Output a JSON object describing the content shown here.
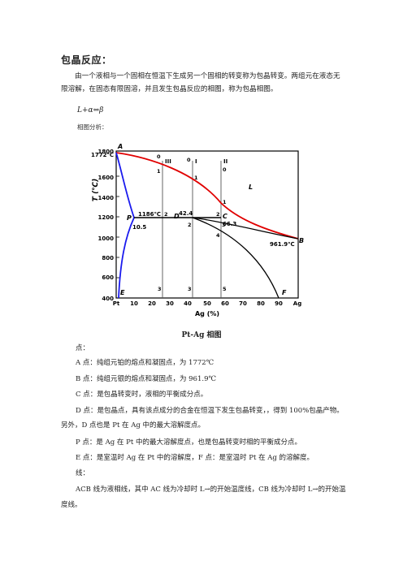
{
  "heading": "包晶反应：",
  "intro": "由一个液相与一个固相在恒温下生成另一个固相的转变称为包晶转变。两组元在液态无限溶解，在固态有限固溶，并且发生包晶反应的相图，称为包晶相图。",
  "formula": "L+α⇔β",
  "analysis_label": "相图分析：",
  "diagram": {
    "y_axis_label": "T (℃)",
    "x_axis_label": "Ag (%)",
    "y_ticks": [
      "1800",
      "1600",
      "1400",
      "1200",
      "1000",
      "800",
      "600",
      "400"
    ],
    "x_ticks": [
      "10",
      "20",
      "30",
      "40",
      "50",
      "60",
      "70",
      "80",
      "90"
    ],
    "x_left": "Pt",
    "x_right": "Ag",
    "point_A": "A",
    "point_A_temp": "1772℃",
    "point_B": "B",
    "point_B_temp": "961.9℃",
    "point_C": "C",
    "point_C_value": "66.3",
    "point_D": "D",
    "point_D_value": "42.4",
    "point_P": "P",
    "point_P_temp": "1186℃",
    "point_P_value": "10.5",
    "point_E": "E",
    "point_F": "F",
    "region_L": "L",
    "alloy_labels": [
      "III",
      "I",
      "II"
    ],
    "marks": {
      "a0": "0",
      "a1": "1",
      "a2": "2",
      "a3": "3",
      "b0": "0",
      "b1": "1",
      "b2": "2",
      "b3": "3",
      "c0": "0",
      "c1": "1",
      "c2": "2",
      "c3": "3",
      "c4": "4",
      "c5": "5"
    }
  },
  "caption": "Pt-Ag 相图",
  "points_label": "点：",
  "lines": [
    "A 点：纯组元铂的熔点和凝固点，为 1772℃",
    "B 点：纯组元银的熔点和凝固点，为 961.9℃",
    "C 点：是包晶转变时，液相的平衡成分点。"
  ],
  "d_text": "D 点：是包晶点，具有该点成分的合金在恒温下发生包晶转变，，得到 100%包晶产物。另外，D 点也是 Pt 在 Ag 中的最大溶解度点。",
  "lines2": [
    "P 点：是 Ag 在 Pt 中的最大溶解度点，也是包晶转变时相的平衡成分点。",
    "E 点：是室温时 Ag 在 Pt 中的溶解度，F 点：是室温时 Pt 在 Ag 的溶解度。"
  ],
  "lines_label": "线：",
  "acb_text": "ACB 线为液相线，其中 AC 线为冷却时 L→的开始温度线，CB 线为冷却时 L→的开始温度线。"
}
